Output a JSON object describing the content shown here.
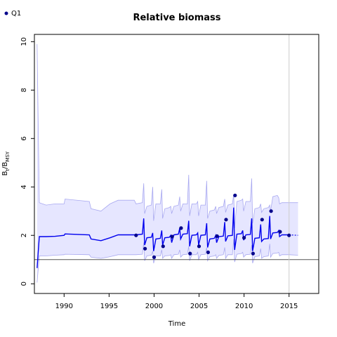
{
  "chart_data": {
    "type": "line",
    "title": "Relative biomass",
    "xlabel": "Time",
    "ylabel_main": "B",
    "ylabel_sub1": "t",
    "ylabel_mid": "/B",
    "ylabel_sub2": "MSY",
    "xlim": [
      1986.7,
      2018.3
    ],
    "ylim": [
      -0.4,
      10.3
    ],
    "xticks": [
      1990,
      1995,
      2000,
      2005,
      2010,
      2015
    ],
    "yticks": [
      0,
      2,
      4,
      6,
      8,
      10
    ],
    "reference_line_y": 1,
    "vertical_line_x": 2015,
    "legend": {
      "label": "Q1",
      "position": "top-left",
      "color": "#00008b"
    },
    "colors": {
      "median_line": "#0000ee",
      "band_fill": "#e6e6ff",
      "band_edge": "#a8a8f0",
      "points": "#00008b",
      "ref_line": "#555555",
      "vline": "#cccccc"
    },
    "median": [
      [
        1987.0,
        0.65
      ],
      [
        1987.25,
        1.95
      ],
      [
        1988,
        1.95
      ],
      [
        1989,
        1.96
      ],
      [
        1990,
        2.0
      ],
      [
        1990.1,
        2.06
      ],
      [
        1992.8,
        2.02
      ],
      [
        1993.0,
        1.85
      ],
      [
        1994.1,
        1.78
      ],
      [
        1995.1,
        1.9
      ],
      [
        1996.0,
        2.02
      ],
      [
        1998.0,
        2.02
      ],
      [
        1998.7,
        2.05
      ],
      [
        1998.85,
        2.7
      ],
      [
        1998.95,
        1.6
      ],
      [
        1999.2,
        1.9
      ],
      [
        1999.7,
        1.92
      ],
      [
        1999.85,
        2.1
      ],
      [
        1999.95,
        1.35
      ],
      [
        2000.2,
        1.85
      ],
      [
        2000.7,
        1.88
      ],
      [
        2000.85,
        2.2
      ],
      [
        2000.95,
        1.6
      ],
      [
        2001.2,
        1.9
      ],
      [
        2001.7,
        1.92
      ],
      [
        2001.85,
        2.0
      ],
      [
        2001.95,
        1.7
      ],
      [
        2002.2,
        2.02
      ],
      [
        2002.7,
        2.05
      ],
      [
        2002.85,
        2.3
      ],
      [
        2002.95,
        1.85
      ],
      [
        2003.2,
        2.05
      ],
      [
        2003.7,
        2.07
      ],
      [
        2003.85,
        2.6
      ],
      [
        2003.95,
        1.55
      ],
      [
        2004.2,
        2.0
      ],
      [
        2004.7,
        2.02
      ],
      [
        2004.85,
        2.1
      ],
      [
        2004.95,
        1.6
      ],
      [
        2005.2,
        2.0
      ],
      [
        2005.7,
        2.02
      ],
      [
        2005.85,
        2.5
      ],
      [
        2005.95,
        1.5
      ],
      [
        2006.2,
        1.85
      ],
      [
        2006.7,
        1.88
      ],
      [
        2006.85,
        2.0
      ],
      [
        2006.95,
        1.7
      ],
      [
        2007.2,
        1.95
      ],
      [
        2007.7,
        1.97
      ],
      [
        2007.85,
        2.55
      ],
      [
        2007.95,
        1.75
      ],
      [
        2008.2,
        1.98
      ],
      [
        2008.7,
        2.0
      ],
      [
        2008.85,
        3.15
      ],
      [
        2008.95,
        1.4
      ],
      [
        2009.2,
        2.05
      ],
      [
        2009.7,
        2.07
      ],
      [
        2009.85,
        2.2
      ],
      [
        2009.95,
        1.8
      ],
      [
        2010.2,
        2.02
      ],
      [
        2010.7,
        2.04
      ],
      [
        2010.85,
        2.7
      ],
      [
        2010.95,
        1.35
      ],
      [
        2011.2,
        1.88
      ],
      [
        2011.7,
        1.9
      ],
      [
        2011.85,
        2.45
      ],
      [
        2011.95,
        1.75
      ],
      [
        2012.2,
        1.85
      ],
      [
        2012.7,
        1.87
      ],
      [
        2012.85,
        2.8
      ],
      [
        2012.95,
        1.85
      ],
      [
        2013.2,
        2.1
      ],
      [
        2013.7,
        2.12
      ],
      [
        2013.85,
        2.2
      ],
      [
        2013.95,
        1.95
      ],
      [
        2014.2,
        2.02
      ],
      [
        2015.0,
        2.02
      ]
    ],
    "median_forecast": [
      [
        2015.0,
        2.02
      ],
      [
        2016.0,
        2.0
      ]
    ],
    "upper": [
      [
        1987.0,
        9.9
      ],
      [
        1987.25,
        3.35
      ],
      [
        1988,
        3.25
      ],
      [
        1989,
        3.3
      ],
      [
        1990,
        3.3
      ],
      [
        1990.1,
        3.5
      ],
      [
        1992.8,
        3.4
      ],
      [
        1993.0,
        3.1
      ],
      [
        1994.1,
        3.0
      ],
      [
        1995.1,
        3.3
      ],
      [
        1996.0,
        3.45
      ],
      [
        1997.8,
        3.45
      ],
      [
        1998.0,
        3.3
      ],
      [
        1998.7,
        3.35
      ],
      [
        1998.85,
        4.15
      ],
      [
        1998.95,
        2.9
      ],
      [
        1999.2,
        3.2
      ],
      [
        1999.7,
        3.25
      ],
      [
        1999.85,
        4.0
      ],
      [
        1999.95,
        2.6
      ],
      [
        2000.2,
        3.3
      ],
      [
        2000.7,
        3.3
      ],
      [
        2000.85,
        3.9
      ],
      [
        2000.95,
        2.7
      ],
      [
        2001.2,
        3.1
      ],
      [
        2001.7,
        3.15
      ],
      [
        2001.85,
        3.2
      ],
      [
        2001.95,
        2.9
      ],
      [
        2002.2,
        3.2
      ],
      [
        2002.7,
        3.25
      ],
      [
        2002.85,
        3.6
      ],
      [
        2002.95,
        3.0
      ],
      [
        2003.2,
        3.3
      ],
      [
        2003.7,
        3.3
      ],
      [
        2003.85,
        4.5
      ],
      [
        2003.95,
        2.8
      ],
      [
        2004.2,
        3.3
      ],
      [
        2004.7,
        3.3
      ],
      [
        2004.85,
        3.4
      ],
      [
        2004.95,
        2.8
      ],
      [
        2005.2,
        3.25
      ],
      [
        2005.7,
        3.25
      ],
      [
        2005.85,
        4.25
      ],
      [
        2005.95,
        2.7
      ],
      [
        2006.2,
        3.0
      ],
      [
        2006.7,
        3.05
      ],
      [
        2006.85,
        3.2
      ],
      [
        2006.95,
        2.9
      ],
      [
        2007.2,
        3.15
      ],
      [
        2007.7,
        3.2
      ],
      [
        2007.85,
        3.5
      ],
      [
        2007.95,
        2.95
      ],
      [
        2008.2,
        3.25
      ],
      [
        2008.7,
        3.3
      ],
      [
        2008.85,
        3.7
      ],
      [
        2008.95,
        2.3
      ],
      [
        2009.2,
        3.4
      ],
      [
        2009.7,
        3.45
      ],
      [
        2009.85,
        3.5
      ],
      [
        2009.95,
        3.0
      ],
      [
        2010.2,
        3.4
      ],
      [
        2010.7,
        3.4
      ],
      [
        2010.85,
        4.35
      ],
      [
        2010.95,
        2.5
      ],
      [
        2011.2,
        3.1
      ],
      [
        2011.7,
        3.15
      ],
      [
        2011.85,
        3.3
      ],
      [
        2011.95,
        2.95
      ],
      [
        2012.2,
        3.1
      ],
      [
        2012.7,
        3.15
      ],
      [
        2012.85,
        3.25
      ],
      [
        2012.95,
        3.0
      ],
      [
        2013.2,
        3.6
      ],
      [
        2013.7,
        3.65
      ],
      [
        2013.85,
        3.55
      ],
      [
        2013.95,
        3.3
      ],
      [
        2014.2,
        3.35
      ],
      [
        2015.0,
        3.35
      ],
      [
        2016.0,
        3.35
      ]
    ],
    "lower": [
      [
        1987.0,
        0.05
      ],
      [
        1987.25,
        1.15
      ],
      [
        1988,
        1.15
      ],
      [
        1989,
        1.18
      ],
      [
        1990,
        1.2
      ],
      [
        1990.1,
        1.22
      ],
      [
        1992.8,
        1.2
      ],
      [
        1993.0,
        1.1
      ],
      [
        1994.1,
        1.05
      ],
      [
        1995.1,
        1.12
      ],
      [
        1996.0,
        1.2
      ],
      [
        1998.0,
        1.2
      ],
      [
        1998.7,
        1.22
      ],
      [
        1998.85,
        1.7
      ],
      [
        1998.95,
        0.95
      ],
      [
        1999.2,
        1.15
      ],
      [
        1999.7,
        1.18
      ],
      [
        1999.85,
        1.35
      ],
      [
        1999.95,
        0.85
      ],
      [
        2000.2,
        1.15
      ],
      [
        2000.7,
        1.15
      ],
      [
        2000.85,
        1.4
      ],
      [
        2000.95,
        1.05
      ],
      [
        2001.2,
        1.15
      ],
      [
        2001.7,
        1.17
      ],
      [
        2001.85,
        1.2
      ],
      [
        2001.95,
        1.05
      ],
      [
        2002.2,
        1.2
      ],
      [
        2002.7,
        1.22
      ],
      [
        2002.85,
        1.4
      ],
      [
        2002.95,
        1.1
      ],
      [
        2003.2,
        1.2
      ],
      [
        2003.7,
        1.22
      ],
      [
        2003.85,
        1.55
      ],
      [
        2003.95,
        0.95
      ],
      [
        2004.2,
        1.2
      ],
      [
        2004.7,
        1.2
      ],
      [
        2004.85,
        1.3
      ],
      [
        2004.95,
        1.0
      ],
      [
        2005.2,
        1.2
      ],
      [
        2005.7,
        1.22
      ],
      [
        2005.85,
        1.5
      ],
      [
        2005.95,
        0.95
      ],
      [
        2006.2,
        1.12
      ],
      [
        2006.7,
        1.15
      ],
      [
        2006.85,
        1.2
      ],
      [
        2006.95,
        1.05
      ],
      [
        2007.2,
        1.17
      ],
      [
        2007.7,
        1.2
      ],
      [
        2007.85,
        1.5
      ],
      [
        2007.95,
        1.05
      ],
      [
        2008.2,
        1.2
      ],
      [
        2008.7,
        1.2
      ],
      [
        2008.85,
        1.85
      ],
      [
        2008.95,
        0.9
      ],
      [
        2009.2,
        1.22
      ],
      [
        2009.7,
        1.25
      ],
      [
        2009.85,
        1.3
      ],
      [
        2009.95,
        1.1
      ],
      [
        2010.2,
        1.2
      ],
      [
        2010.7,
        1.22
      ],
      [
        2010.85,
        1.6
      ],
      [
        2010.95,
        0.85
      ],
      [
        2011.2,
        1.12
      ],
      [
        2011.7,
        1.15
      ],
      [
        2011.85,
        1.45
      ],
      [
        2011.95,
        1.05
      ],
      [
        2012.2,
        1.12
      ],
      [
        2012.7,
        1.15
      ],
      [
        2012.85,
        1.65
      ],
      [
        2012.95,
        1.1
      ],
      [
        2013.2,
        1.25
      ],
      [
        2013.7,
        1.27
      ],
      [
        2013.85,
        1.3
      ],
      [
        2013.95,
        1.15
      ],
      [
        2014.2,
        1.2
      ],
      [
        2015.0,
        1.2
      ],
      [
        2016.0,
        1.18
      ]
    ],
    "points": [
      [
        1998,
        2.0
      ],
      [
        1999,
        1.45
      ],
      [
        2000,
        1.1
      ],
      [
        2001,
        1.55
      ],
      [
        2002,
        1.95
      ],
      [
        2003,
        2.3
      ],
      [
        2004,
        1.25
      ],
      [
        2005,
        1.55
      ],
      [
        2006,
        1.3
      ],
      [
        2007,
        1.97
      ],
      [
        2008,
        2.65
      ],
      [
        2009,
        3.65
      ],
      [
        2010,
        1.9
      ],
      [
        2011,
        1.25
      ],
      [
        2012,
        2.65
      ],
      [
        2013,
        3.0
      ],
      [
        2014,
        2.15
      ],
      [
        2015,
        2.0
      ]
    ]
  }
}
